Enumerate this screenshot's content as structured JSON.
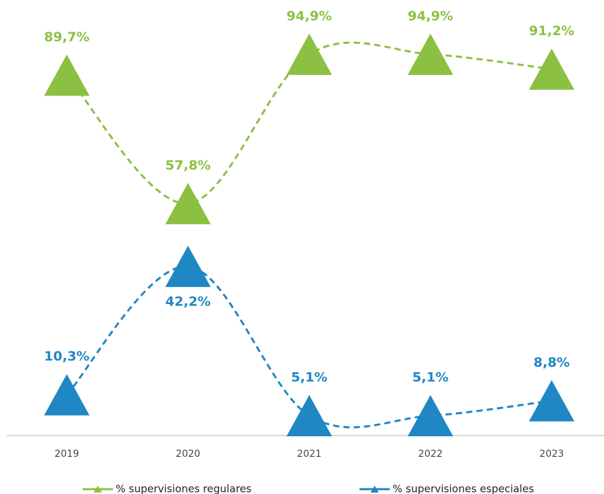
{
  "chart_data": {
    "type": "line",
    "categories": [
      "2019",
      "2020",
      "2021",
      "2022",
      "2023"
    ],
    "ylim": [
      0,
      100
    ],
    "series": [
      {
        "name": "% supervisiones regulares",
        "color": "#8cc043",
        "values": [
          89.7,
          57.8,
          94.9,
          94.9,
          91.2
        ],
        "value_labels": [
          "89,7%",
          "57,8%",
          "94,9%",
          "94,9%",
          "91,2%"
        ]
      },
      {
        "name": "% supervisiones especiales",
        "color": "#1f87c3",
        "values": [
          10.3,
          42.2,
          5.1,
          5.1,
          8.8
        ],
        "value_labels": [
          "10,3%",
          "42,2%",
          "5,1%",
          "5,1%",
          "8,8%"
        ]
      }
    ]
  }
}
